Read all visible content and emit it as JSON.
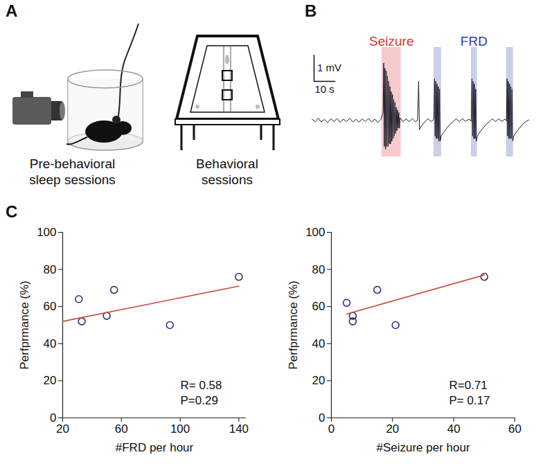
{
  "panels": {
    "A": {
      "label": "A",
      "captions": [
        "Pre-behavioral sleep sessions",
        "Behavioral sessions"
      ]
    },
    "B": {
      "label": "B",
      "xlim": [
        0,
        104
      ],
      "ylim": [
        -1.4,
        2.8
      ],
      "trace_color": "#1c1c2a",
      "events": [
        {
          "name": "Seizure",
          "color": "#d8332f",
          "bands": [
            [
              33.4,
              42.6
            ]
          ]
        },
        {
          "name": "FRD",
          "color": "#2f3f9e",
          "bands": [
            [
              58.3,
              61.9
            ],
            [
              76.2,
              79.1
            ],
            [
              93.0,
              96.3
            ]
          ]
        }
      ],
      "scale_bar": {
        "v": 1,
        "v_label": "1 mV",
        "t": 10,
        "t_label": "10 s"
      },
      "trace": [
        [
          0,
          0.05
        ],
        [
          1.5,
          -0.05
        ],
        [
          3,
          0.08
        ],
        [
          4.5,
          -0.06
        ],
        [
          6,
          0.04
        ],
        [
          7.5,
          -0.08
        ],
        [
          9,
          0.06
        ],
        [
          10.5,
          -0.04
        ],
        [
          12,
          0.07
        ],
        [
          13.5,
          -0.07
        ],
        [
          15,
          0.05
        ],
        [
          16.5,
          -0.05
        ],
        [
          18,
          0.08
        ],
        [
          19.5,
          -0.06
        ],
        [
          21,
          0.04
        ],
        [
          22.5,
          -0.07
        ],
        [
          24,
          0.06
        ],
        [
          25.5,
          -0.05
        ],
        [
          27,
          0.07
        ],
        [
          28.5,
          -0.06
        ],
        [
          30,
          0.05
        ],
        [
          31.5,
          -0.08
        ],
        [
          33,
          0.04
        ],
        [
          34,
          0.3
        ],
        [
          34.3,
          2.2
        ],
        [
          34.6,
          -1.0
        ],
        [
          34.9,
          2.0
        ],
        [
          35.2,
          -1.1
        ],
        [
          35.5,
          1.9
        ],
        [
          35.8,
          -1.0
        ],
        [
          36.1,
          1.7
        ],
        [
          36.4,
          -1.0
        ],
        [
          36.7,
          1.5
        ],
        [
          37,
          -0.9
        ],
        [
          37.3,
          1.3
        ],
        [
          37.6,
          -0.9
        ],
        [
          37.9,
          1.1
        ],
        [
          38.2,
          -0.8
        ],
        [
          38.5,
          1.0
        ],
        [
          38.8,
          -0.7
        ],
        [
          39.1,
          0.8
        ],
        [
          39.4,
          -0.6
        ],
        [
          39.7,
          0.7
        ],
        [
          40,
          -0.5
        ],
        [
          40.3,
          0.5
        ],
        [
          40.6,
          -0.4
        ],
        [
          40.9,
          0.4
        ],
        [
          41.2,
          -0.3
        ],
        [
          41.5,
          0.3
        ],
        [
          41.8,
          -0.3
        ],
        [
          42.1,
          0.1
        ],
        [
          43.5,
          -0.05
        ],
        [
          45,
          0.06
        ],
        [
          46.5,
          -0.05
        ],
        [
          48,
          0.07
        ],
        [
          49.5,
          -0.05
        ],
        [
          50.5,
          0.0
        ],
        [
          51,
          1.5
        ],
        [
          51.4,
          -0.35
        ],
        [
          52.5,
          -0.2
        ],
        [
          54,
          -0.05
        ],
        [
          55.5,
          0.06
        ],
        [
          57,
          -0.05
        ],
        [
          58.3,
          0.04
        ],
        [
          58.6,
          1.6
        ],
        [
          58.9,
          -0.6
        ],
        [
          59.2,
          1.5
        ],
        [
          59.5,
          -0.7
        ],
        [
          59.8,
          1.4
        ],
        [
          60.1,
          -0.7
        ],
        [
          60.4,
          1.3
        ],
        [
          60.7,
          -0.8
        ],
        [
          61,
          1.2
        ],
        [
          61.3,
          -0.8
        ],
        [
          61.8,
          -0.6
        ],
        [
          63,
          -0.45
        ],
        [
          64.5,
          -0.3
        ],
        [
          66,
          -0.15
        ],
        [
          67.5,
          -0.05
        ],
        [
          69,
          0.06
        ],
        [
          70.5,
          -0.05
        ],
        [
          72,
          0.07
        ],
        [
          73.5,
          -0.04
        ],
        [
          75,
          0.05
        ],
        [
          76.2,
          -0.03
        ],
        [
          76.5,
          1.6
        ],
        [
          76.8,
          -0.6
        ],
        [
          77.1,
          1.5
        ],
        [
          77.4,
          -0.7
        ],
        [
          77.7,
          1.4
        ],
        [
          78,
          -0.7
        ],
        [
          78.3,
          1.2
        ],
        [
          78.6,
          -0.8
        ],
        [
          79.1,
          -0.6
        ],
        [
          80.3,
          -0.45
        ],
        [
          81.8,
          -0.3
        ],
        [
          83.3,
          -0.15
        ],
        [
          84.8,
          -0.05
        ],
        [
          86.3,
          0.06
        ],
        [
          87.8,
          -0.05
        ],
        [
          89.3,
          0.06
        ],
        [
          90.8,
          -0.04
        ],
        [
          92.3,
          0.05
        ],
        [
          93,
          -0.02
        ],
        [
          93.3,
          1.6
        ],
        [
          93.6,
          -0.6
        ],
        [
          93.9,
          1.5
        ],
        [
          94.2,
          -0.7
        ],
        [
          94.5,
          1.4
        ],
        [
          94.8,
          -0.7
        ],
        [
          95.1,
          1.3
        ],
        [
          95.4,
          -0.7
        ],
        [
          95.7,
          1.2
        ],
        [
          96,
          -0.8
        ],
        [
          96.5,
          -0.6
        ],
        [
          97.7,
          -0.45
        ],
        [
          99.2,
          -0.3
        ],
        [
          100.7,
          -0.15
        ],
        [
          102.2,
          -0.05
        ],
        [
          104,
          0.03
        ]
      ]
    },
    "C": {
      "label": "C"
    }
  },
  "chart_data": [
    {
      "type": "scatter",
      "x_label": "#FRD per hour",
      "y_label": "Perfprmance (%)",
      "xlim": [
        20,
        145
      ],
      "xticks": [
        20,
        60,
        100,
        140
      ],
      "ylim": [
        0,
        100
      ],
      "yticks": [
        0,
        20,
        40,
        60,
        80,
        100
      ],
      "grid": false,
      "series": [
        {
          "type": "scatter",
          "marker": "circle",
          "color": "#2e2f7a",
          "x": [
            31,
            33,
            50,
            55,
            93,
            140
          ],
          "values": [
            64,
            52,
            55,
            69,
            50,
            76
          ]
        },
        {
          "type": "line",
          "line_style": "solid",
          "color": "#c8503a",
          "x": [
            20,
            140
          ],
          "values": [
            52,
            71
          ]
        }
      ],
      "annotations": [
        "R= 0.58",
        "P=0.29"
      ]
    },
    {
      "type": "scatter",
      "x_label": "#Seizure per hour",
      "y_label": "Perfprmance (%)",
      "xlim": [
        0,
        60
      ],
      "xticks": [
        0,
        20,
        40,
        60
      ],
      "ylim": [
        0,
        100
      ],
      "yticks": [
        0,
        20,
        40,
        60,
        80,
        100
      ],
      "grid": false,
      "series": [
        {
          "type": "scatter",
          "marker": "circle",
          "color": "#2e2f7a",
          "x": [
            5,
            7,
            7,
            15,
            21,
            50
          ],
          "values": [
            62,
            55,
            52,
            69,
            50,
            76
          ]
        },
        {
          "type": "line",
          "line_style": "solid",
          "color": "#c8503a",
          "x": [
            5,
            50
          ],
          "values": [
            56,
            77
          ]
        }
      ],
      "annotations": [
        "R=0.71",
        "P= 0.17"
      ]
    }
  ]
}
